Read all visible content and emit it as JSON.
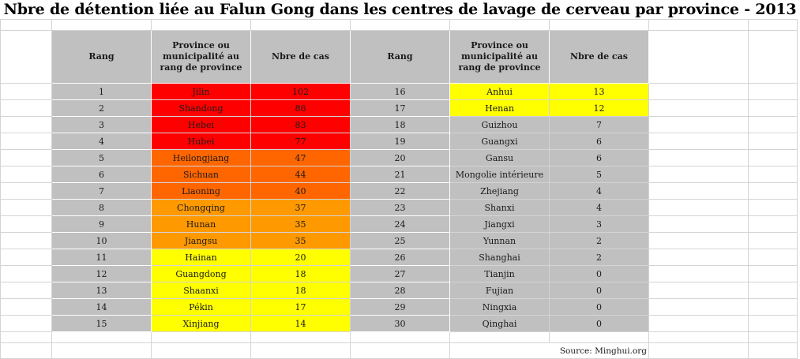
{
  "title": "Nbre de détention liée au Falun Gong dans les centres de lavage de cerveau par province - 2013",
  "source": "Source: Minghui.org",
  "colors": {
    "red": "#ff0000",
    "dark_orange": "#ff6600",
    "orange": "#ff9900",
    "yellow": "#ffff00",
    "gray": "#c0c0c0"
  },
  "chart_data": {
    "type": "table",
    "title": "Nbre de détention liée au Falun Gong dans les centres de lavage de cerveau par province - 2013",
    "columns": [
      "Rang",
      "Province ou municipalité au rang de province",
      "Nbre de cas"
    ],
    "left": [
      {
        "rank": "1",
        "province": "Jilin",
        "cases": "102",
        "color": "red"
      },
      {
        "rank": "2",
        "province": "Shandong",
        "cases": "86",
        "color": "red"
      },
      {
        "rank": "3",
        "province": "Hebei",
        "cases": "83",
        "color": "red"
      },
      {
        "rank": "4",
        "province": "Hubei",
        "cases": "77",
        "color": "red"
      },
      {
        "rank": "5",
        "province": "Heilongjiang",
        "cases": "47",
        "color": "dark_orange"
      },
      {
        "rank": "6",
        "province": "Sichuan",
        "cases": "44",
        "color": "dark_orange"
      },
      {
        "rank": "7",
        "province": "Liaoning",
        "cases": "40",
        "color": "dark_orange"
      },
      {
        "rank": "8",
        "province": "Chongqing",
        "cases": "37",
        "color": "orange"
      },
      {
        "rank": "9",
        "province": "Hunan",
        "cases": "35",
        "color": "orange"
      },
      {
        "rank": "10",
        "province": "Jiangsu",
        "cases": "35",
        "color": "orange"
      },
      {
        "rank": "11",
        "province": "Hainan",
        "cases": "20",
        "color": "yellow"
      },
      {
        "rank": "12",
        "province": "Guangdong",
        "cases": "18",
        "color": "yellow"
      },
      {
        "rank": "13",
        "province": "Shaanxi",
        "cases": "18",
        "color": "yellow"
      },
      {
        "rank": "14",
        "province": "Pékin",
        "cases": "17",
        "color": "yellow"
      },
      {
        "rank": "15",
        "province": "Xinjiang",
        "cases": "14",
        "color": "yellow"
      }
    ],
    "right": [
      {
        "rank": "16",
        "province": "Anhui",
        "cases": "13",
        "color": "yellow"
      },
      {
        "rank": "17",
        "province": "Henan",
        "cases": "12",
        "color": "yellow"
      },
      {
        "rank": "18",
        "province": "Guizhou",
        "cases": "7",
        "color": "gray"
      },
      {
        "rank": "19",
        "province": "Guangxi",
        "cases": "6",
        "color": "gray"
      },
      {
        "rank": "20",
        "province": "Gansu",
        "cases": "6",
        "color": "gray"
      },
      {
        "rank": "21",
        "province": "Mongolie intérieure",
        "cases": "5",
        "color": "gray"
      },
      {
        "rank": "22",
        "province": "Zhejiang",
        "cases": "4",
        "color": "gray"
      },
      {
        "rank": "23",
        "province": "Shanxi",
        "cases": "4",
        "color": "gray"
      },
      {
        "rank": "24",
        "province": "Jiangxi",
        "cases": "3",
        "color": "gray"
      },
      {
        "rank": "25",
        "province": "Yunnan",
        "cases": "2",
        "color": "gray"
      },
      {
        "rank": "26",
        "province": "Shanghai",
        "cases": "2",
        "color": "gray"
      },
      {
        "rank": "27",
        "province": "Tianjin",
        "cases": "0",
        "color": "gray"
      },
      {
        "rank": "28",
        "province": "Fujian",
        "cases": "0",
        "color": "gray"
      },
      {
        "rank": "29",
        "province": "Ningxia",
        "cases": "0",
        "color": "gray"
      },
      {
        "rank": "30",
        "province": "Qinghai",
        "cases": "0",
        "color": "gray"
      }
    ]
  }
}
